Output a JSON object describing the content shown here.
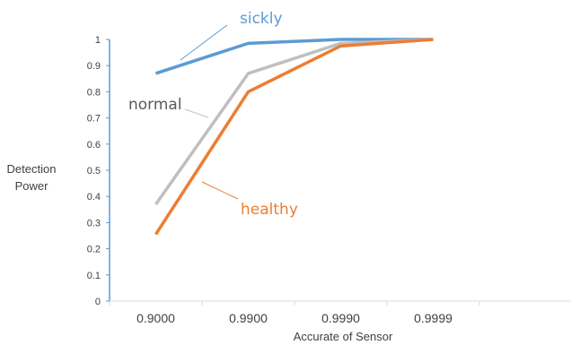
{
  "chart_data": {
    "type": "line",
    "categories": [
      "0.9000",
      "0.9900",
      "0.9990",
      "0.9999"
    ],
    "series": [
      {
        "name": "sickly",
        "color": "#5b9bd5",
        "values": [
          0.87,
          0.985,
          1.0,
          1.0
        ]
      },
      {
        "name": "normal",
        "color": "#bfbfbf",
        "values": [
          0.37,
          0.87,
          0.985,
          1.0
        ]
      },
      {
        "name": "healthy",
        "color": "#ed7d31",
        "values": [
          0.255,
          0.8,
          0.975,
          1.0
        ]
      }
    ],
    "y_ticks": [
      "0",
      "0.1",
      "0.2",
      "0.3",
      "0.4",
      "0.5",
      "0.6",
      "0.7",
      "0.8",
      "0.9",
      "1"
    ],
    "xlabel": "Accurate of Sensor",
    "ylabel_line1": "Detection",
    "ylabel_line2": "Power",
    "ylim": [
      0,
      1
    ],
    "grid": false,
    "legend": "inline labels"
  }
}
